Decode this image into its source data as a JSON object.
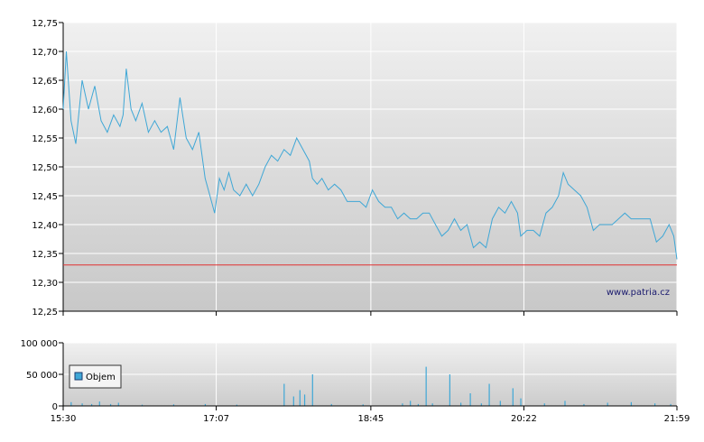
{
  "chart_data": [
    {
      "type": "line",
      "title": "",
      "xlabel": "",
      "ylabel": "",
      "ylim": [
        12.25,
        12.75
      ],
      "y_ticks": [
        "12,25",
        "12,30",
        "12,35",
        "12,40",
        "12,45",
        "12,50",
        "12,55",
        "12,60",
        "12,65",
        "12,70",
        "12,75"
      ],
      "x_ticks": [
        "15:30",
        "17:07",
        "18:45",
        "20:22",
        "21:59"
      ],
      "grid": true,
      "reference_line": {
        "value": 12.33,
        "color": "#e03030"
      },
      "source_label": "www.patria.cz",
      "line_color": "#3fa7d6",
      "series": [
        {
          "points": [
            [
              "15:30",
              12.6
            ],
            [
              "15:32",
              12.7
            ],
            [
              "15:35",
              12.58
            ],
            [
              "15:38",
              12.54
            ],
            [
              "15:42",
              12.65
            ],
            [
              "15:46",
              12.6
            ],
            [
              "15:50",
              12.64
            ],
            [
              "15:54",
              12.58
            ],
            [
              "15:58",
              12.56
            ],
            [
              "16:02",
              12.59
            ],
            [
              "16:06",
              12.57
            ],
            [
              "16:08",
              12.59
            ],
            [
              "16:10",
              12.67
            ],
            [
              "16:13",
              12.6
            ],
            [
              "16:16",
              12.58
            ],
            [
              "16:20",
              12.61
            ],
            [
              "16:24",
              12.56
            ],
            [
              "16:28",
              12.58
            ],
            [
              "16:32",
              12.56
            ],
            [
              "16:36",
              12.57
            ],
            [
              "16:40",
              12.53
            ],
            [
              "16:44",
              12.62
            ],
            [
              "16:48",
              12.55
            ],
            [
              "16:52",
              12.53
            ],
            [
              "16:56",
              12.56
            ],
            [
              "17:00",
              12.48
            ],
            [
              "17:03",
              12.45
            ],
            [
              "17:06",
              12.42
            ],
            [
              "17:09",
              12.48
            ],
            [
              "17:12",
              12.46
            ],
            [
              "17:15",
              12.49
            ],
            [
              "17:18",
              12.46
            ],
            [
              "17:22",
              12.45
            ],
            [
              "17:26",
              12.47
            ],
            [
              "17:30",
              12.45
            ],
            [
              "17:34",
              12.47
            ],
            [
              "17:38",
              12.5
            ],
            [
              "17:42",
              12.52
            ],
            [
              "17:46",
              12.51
            ],
            [
              "17:50",
              12.53
            ],
            [
              "17:54",
              12.52
            ],
            [
              "17:58",
              12.55
            ],
            [
              "18:02",
              12.53
            ],
            [
              "18:06",
              12.51
            ],
            [
              "18:08",
              12.48
            ],
            [
              "18:11",
              12.47
            ],
            [
              "18:14",
              12.48
            ],
            [
              "18:18",
              12.46
            ],
            [
              "18:22",
              12.47
            ],
            [
              "18:26",
              12.46
            ],
            [
              "18:30",
              12.44
            ],
            [
              "18:34",
              12.44
            ],
            [
              "18:38",
              12.44
            ],
            [
              "18:42",
              12.43
            ],
            [
              "18:46",
              12.46
            ],
            [
              "18:50",
              12.44
            ],
            [
              "18:54",
              12.43
            ],
            [
              "18:58",
              12.43
            ],
            [
              "19:02",
              12.41
            ],
            [
              "19:06",
              12.42
            ],
            [
              "19:10",
              12.41
            ],
            [
              "19:14",
              12.41
            ],
            [
              "19:18",
              12.42
            ],
            [
              "19:22",
              12.42
            ],
            [
              "19:26",
              12.4
            ],
            [
              "19:30",
              12.38
            ],
            [
              "19:34",
              12.39
            ],
            [
              "19:38",
              12.41
            ],
            [
              "19:42",
              12.39
            ],
            [
              "19:46",
              12.4
            ],
            [
              "19:50",
              12.36
            ],
            [
              "19:54",
              12.37
            ],
            [
              "19:58",
              12.36
            ],
            [
              "20:02",
              12.41
            ],
            [
              "20:06",
              12.43
            ],
            [
              "20:10",
              12.42
            ],
            [
              "20:14",
              12.44
            ],
            [
              "20:18",
              12.42
            ],
            [
              "20:20",
              12.38
            ],
            [
              "20:24",
              12.39
            ],
            [
              "20:28",
              12.39
            ],
            [
              "20:32",
              12.38
            ],
            [
              "20:36",
              12.42
            ],
            [
              "20:40",
              12.43
            ],
            [
              "20:44",
              12.45
            ],
            [
              "20:47",
              12.49
            ],
            [
              "20:50",
              12.47
            ],
            [
              "20:54",
              12.46
            ],
            [
              "20:58",
              12.45
            ],
            [
              "21:02",
              12.43
            ],
            [
              "21:06",
              12.39
            ],
            [
              "21:10",
              12.4
            ],
            [
              "21:14",
              12.4
            ],
            [
              "21:18",
              12.4
            ],
            [
              "21:22",
              12.41
            ],
            [
              "21:26",
              12.42
            ],
            [
              "21:30",
              12.41
            ],
            [
              "21:34",
              12.41
            ],
            [
              "21:38",
              12.41
            ],
            [
              "21:42",
              12.41
            ],
            [
              "21:46",
              12.37
            ],
            [
              "21:50",
              12.38
            ],
            [
              "21:54",
              12.4
            ],
            [
              "21:57",
              12.38
            ],
            [
              "21:59",
              12.34
            ]
          ]
        }
      ]
    },
    {
      "type": "bar",
      "title": "",
      "xlabel": "",
      "ylabel": "",
      "ylim": [
        0,
        100000
      ],
      "y_ticks": [
        "0",
        "50 000",
        "100 000"
      ],
      "x_ticks": [
        "15:30",
        "17:07",
        "18:45",
        "20:22",
        "21:59"
      ],
      "grid": true,
      "legend": {
        "position": "left",
        "label": "Objem",
        "color": "#3fa7d6"
      },
      "bar_color": "#3fa7d6",
      "series": [
        {
          "name": "Objem",
          "points": [
            [
              "15:35",
              6000
            ],
            [
              "15:42",
              4000
            ],
            [
              "15:48",
              3000
            ],
            [
              "15:53",
              7000
            ],
            [
              "16:00",
              3000
            ],
            [
              "16:05",
              5000
            ],
            [
              "16:20",
              2000
            ],
            [
              "16:40",
              2500
            ],
            [
              "17:00",
              3000
            ],
            [
              "17:20",
              2000
            ],
            [
              "17:50",
              35000
            ],
            [
              "17:56",
              15000
            ],
            [
              "18:00",
              25000
            ],
            [
              "18:03",
              18000
            ],
            [
              "18:08",
              50000
            ],
            [
              "18:20",
              3000
            ],
            [
              "18:40",
              2500
            ],
            [
              "19:05",
              4000
            ],
            [
              "19:10",
              8000
            ],
            [
              "19:15",
              3000
            ],
            [
              "19:20",
              62000
            ],
            [
              "19:24",
              4000
            ],
            [
              "19:35",
              50000
            ],
            [
              "19:42",
              5000
            ],
            [
              "19:48",
              20000
            ],
            [
              "19:55",
              4000
            ],
            [
              "20:00",
              35000
            ],
            [
              "20:07",
              8000
            ],
            [
              "20:15",
              28000
            ],
            [
              "20:20",
              12000
            ],
            [
              "20:35",
              4000
            ],
            [
              "20:48",
              8000
            ],
            [
              "21:00",
              3000
            ],
            [
              "21:15",
              5000
            ],
            [
              "21:30",
              6000
            ],
            [
              "21:45",
              4000
            ],
            [
              "21:55",
              3000
            ]
          ]
        }
      ]
    }
  ]
}
